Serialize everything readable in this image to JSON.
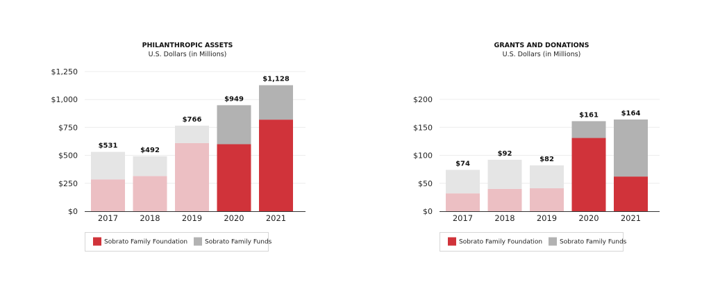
{
  "chart_data": [
    {
      "type": "bar",
      "stacked": true,
      "title": "PHILANTHROPIC ASSETS",
      "subtitle": "U.S. Dollars (in Millions)",
      "categories": [
        "2017",
        "2018",
        "2019",
        "2020",
        "2021"
      ],
      "series": [
        {
          "name": "Sobrato Family Foundation",
          "values": [
            285,
            315,
            610,
            600,
            820
          ]
        },
        {
          "name": "Sobrato Family Funds",
          "values": [
            246,
            177,
            156,
            349,
            308
          ]
        }
      ],
      "totals": [
        531,
        492,
        766,
        949,
        1128
      ],
      "total_labels": [
        "$531",
        "$492",
        "$766",
        "$949",
        "$1,128"
      ],
      "ylim": [
        0,
        1250
      ],
      "yticks": [
        0,
        250,
        500,
        750,
        1000,
        1250
      ],
      "ytick_labels": [
        "$0",
        "$250",
        "$500",
        "$750",
        "$1,000",
        "$1,250"
      ],
      "highlight_categories": [
        "2020",
        "2021"
      ],
      "grid": true,
      "legend": "bottom"
    },
    {
      "type": "bar",
      "stacked": true,
      "title": "GRANTS AND DONATIONS",
      "subtitle": "U.S. Dollars (in Millions)",
      "categories": [
        "2017",
        "2018",
        "2019",
        "2020",
        "2021"
      ],
      "series": [
        {
          "name": "Sobrato Family Foundation",
          "values": [
            32,
            40,
            41,
            131,
            62
          ]
        },
        {
          "name": "Sobrato Family Funds",
          "values": [
            42,
            52,
            41,
            30,
            102
          ]
        }
      ],
      "totals": [
        74,
        92,
        82,
        161,
        164
      ],
      "total_labels": [
        "$74",
        "$92",
        "$82",
        "$161",
        "$164"
      ],
      "ylim": [
        0,
        200
      ],
      "yticks": [
        0,
        50,
        100,
        150,
        200
      ],
      "ytick_labels": [
        "$0",
        "$50",
        "$100",
        "$150",
        "$200"
      ],
      "highlight_categories": [
        "2020",
        "2021"
      ],
      "grid": true,
      "legend": "bottom"
    }
  ],
  "colors": {
    "foundation": "#d0333a",
    "funds": "#b2b2b2",
    "foundation_light": "#ecbfc3",
    "funds_light": "#e5e5e5",
    "grid": "#ececec",
    "axis": "#333333"
  }
}
